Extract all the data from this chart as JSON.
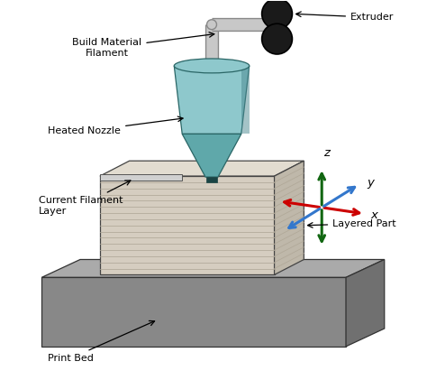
{
  "background_color": "#ffffff",
  "labels": {
    "build_material": "Build Material\nFilament",
    "extruder": "Extruder",
    "heated_nozzle": "Heated Nozzle",
    "current_filament": "Current Filament\nLayer",
    "layered_part": "Layered Part",
    "print_bed": "Print Bed",
    "x": "x",
    "y": "y",
    "z": "z"
  },
  "colors": {
    "nozzle_body": "#8ec8cc",
    "nozzle_dark": "#5fa8aa",
    "nozzle_shade": "#4a8890",
    "part_face_top": "#e2dcd0",
    "part_face_front": "#d5cdc0",
    "part_face_right": "#bfb8aa",
    "part_lines": "#b0a898",
    "bed_top": "#aaaaaa",
    "bed_front": "#888888",
    "bed_right": "#707070",
    "roller_color": "#1a1a1a",
    "pipe_fill": "#c8c8c8",
    "pipe_edge": "#888888",
    "arrow_x": "#cc0000",
    "arrow_y": "#3377cc",
    "arrow_z": "#116611",
    "text_color": "#000000",
    "bracket_fill": "#d0d0d0",
    "bracket_edge": "#555555"
  }
}
